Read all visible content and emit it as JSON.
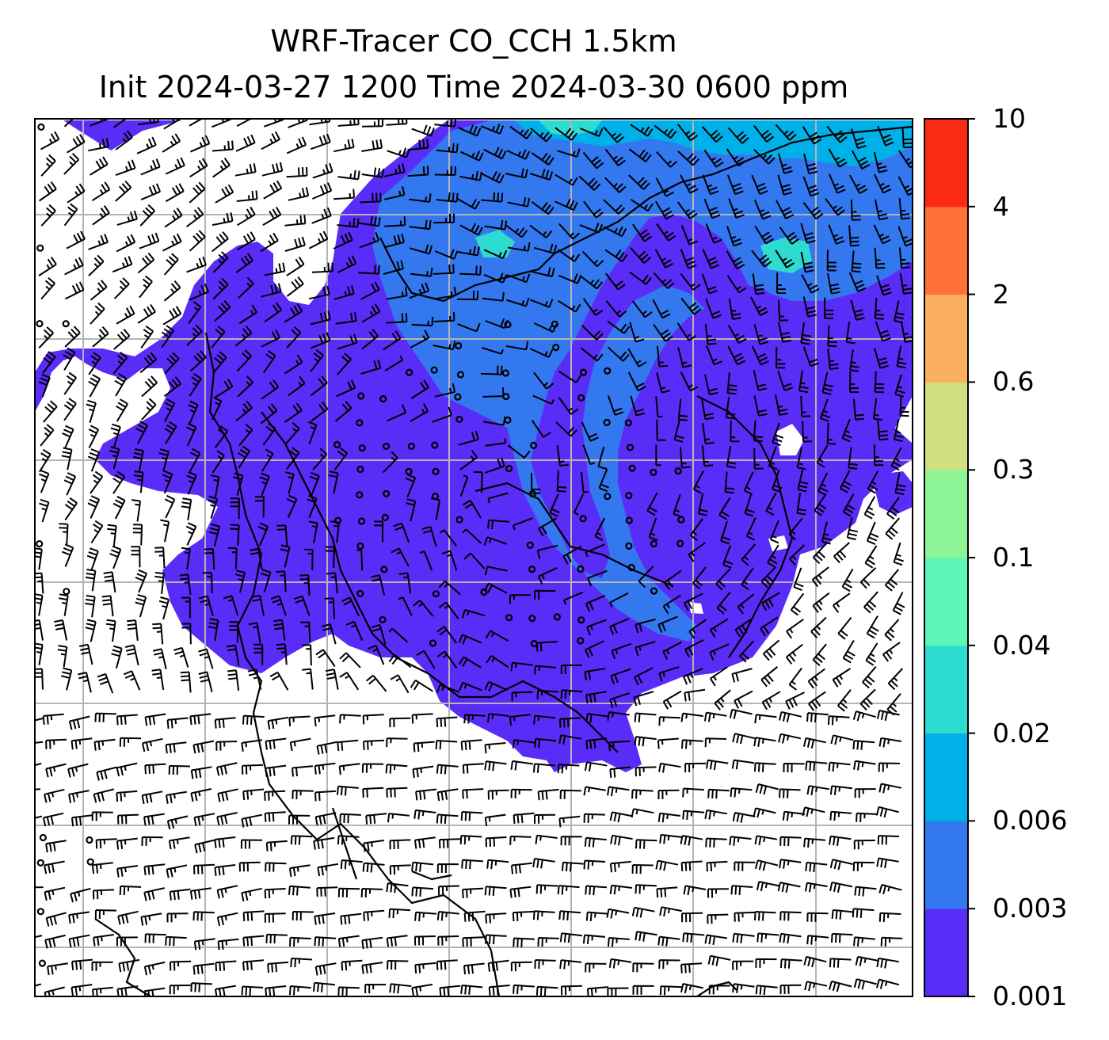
{
  "title": {
    "line1": "WRF-Tracer CO_CCH 1.5km",
    "line2": "Init 2024-03-27 1200 Time 2024-03-30 0600 ppm"
  },
  "colorbar": {
    "levels": [
      "0.001",
      "0.003",
      "0.006",
      "0.02",
      "0.04",
      "0.1",
      "0.3",
      "0.6",
      "2",
      "4",
      "10"
    ],
    "colors": [
      "#5a2cf7",
      "#3478f0",
      "#00b0e8",
      "#2ddbd0",
      "#5ef5b8",
      "#8ef597",
      "#d0df82",
      "#fbb060",
      "#fd7038",
      "#fb2a14"
    ]
  },
  "field_colors": {
    "background": "#ffffff",
    "tracer_low": "#5a2cf7",
    "tracer_mid": "#3478f0",
    "tracer_high": "#00b0e8",
    "tracer_peak": "#2ddbd0",
    "gridline": "#b4b4b4",
    "coastline": "#000000"
  }
}
